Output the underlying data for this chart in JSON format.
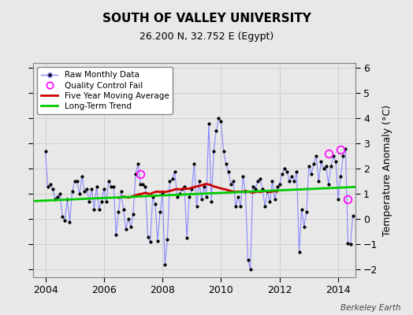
{
  "title": "SOUTH OF VALLEY UNIVERSITY",
  "subtitle": "26.200 N, 32.752 E (Egypt)",
  "ylabel_right": "Temperature Anomaly (°C)",
  "watermark": "Berkeley Earth",
  "xlim": [
    2003.58,
    2014.58
  ],
  "ylim": [
    -2.3,
    6.2
  ],
  "yticks": [
    -2,
    -1,
    0,
    1,
    2,
    3,
    4,
    5,
    6
  ],
  "bg_color": "#e8e8e8",
  "plot_bg_color": "#e8e8e8",
  "raw_line_color": "#8888ff",
  "raw_marker_color": "#000000",
  "moving_avg_color": "#cc0000",
  "trend_color": "#00cc00",
  "qc_fail_color": "#ff00ff",
  "raw_data": [
    [
      2004.0,
      2.7
    ],
    [
      2004.083,
      1.3
    ],
    [
      2004.167,
      1.4
    ],
    [
      2004.25,
      1.2
    ],
    [
      2004.333,
      0.8
    ],
    [
      2004.417,
      0.9
    ],
    [
      2004.5,
      1.0
    ],
    [
      2004.583,
      0.1
    ],
    [
      2004.667,
      -0.05
    ],
    [
      2004.75,
      0.8
    ],
    [
      2004.833,
      -0.1
    ],
    [
      2004.917,
      1.1
    ],
    [
      2005.0,
      1.5
    ],
    [
      2005.083,
      1.5
    ],
    [
      2005.167,
      1.0
    ],
    [
      2005.25,
      1.7
    ],
    [
      2005.333,
      1.1
    ],
    [
      2005.417,
      1.2
    ],
    [
      2005.5,
      0.7
    ],
    [
      2005.583,
      1.2
    ],
    [
      2005.667,
      0.4
    ],
    [
      2005.75,
      1.3
    ],
    [
      2005.833,
      0.4
    ],
    [
      2005.917,
      0.7
    ],
    [
      2006.0,
      1.2
    ],
    [
      2006.083,
      0.7
    ],
    [
      2006.167,
      1.5
    ],
    [
      2006.25,
      1.3
    ],
    [
      2006.333,
      1.3
    ],
    [
      2006.417,
      -0.6
    ],
    [
      2006.5,
      0.3
    ],
    [
      2006.583,
      1.1
    ],
    [
      2006.667,
      0.4
    ],
    [
      2006.75,
      -0.4
    ],
    [
      2006.833,
      0.0
    ],
    [
      2006.917,
      -0.3
    ],
    [
      2007.0,
      0.2
    ],
    [
      2007.083,
      1.8
    ],
    [
      2007.167,
      2.2
    ],
    [
      2007.25,
      1.4
    ],
    [
      2007.333,
      1.4
    ],
    [
      2007.417,
      1.3
    ],
    [
      2007.5,
      -0.7
    ],
    [
      2007.583,
      -0.9
    ],
    [
      2007.667,
      0.9
    ],
    [
      2007.75,
      0.6
    ],
    [
      2007.833,
      -0.85
    ],
    [
      2007.917,
      0.3
    ],
    [
      2008.0,
      1.0
    ],
    [
      2008.083,
      -1.8
    ],
    [
      2008.167,
      -0.8
    ],
    [
      2008.25,
      1.5
    ],
    [
      2008.333,
      1.6
    ],
    [
      2008.417,
      1.9
    ],
    [
      2008.5,
      0.9
    ],
    [
      2008.583,
      1.0
    ],
    [
      2008.667,
      1.2
    ],
    [
      2008.75,
      1.3
    ],
    [
      2008.833,
      -0.75
    ],
    [
      2008.917,
      0.9
    ],
    [
      2009.0,
      1.2
    ],
    [
      2009.083,
      2.2
    ],
    [
      2009.167,
      0.5
    ],
    [
      2009.25,
      1.5
    ],
    [
      2009.333,
      0.8
    ],
    [
      2009.417,
      1.3
    ],
    [
      2009.5,
      0.9
    ],
    [
      2009.583,
      3.8
    ],
    [
      2009.667,
      0.7
    ],
    [
      2009.75,
      2.7
    ],
    [
      2009.833,
      3.5
    ],
    [
      2009.917,
      4.0
    ],
    [
      2010.0,
      3.9
    ],
    [
      2010.083,
      2.7
    ],
    [
      2010.167,
      2.2
    ],
    [
      2010.25,
      1.9
    ],
    [
      2010.333,
      1.4
    ],
    [
      2010.417,
      1.5
    ],
    [
      2010.5,
      0.5
    ],
    [
      2010.583,
      0.9
    ],
    [
      2010.667,
      0.5
    ],
    [
      2010.75,
      1.7
    ],
    [
      2010.833,
      1.1
    ],
    [
      2010.917,
      -1.6
    ],
    [
      2011.0,
      -2.0
    ],
    [
      2011.083,
      1.3
    ],
    [
      2011.167,
      1.2
    ],
    [
      2011.25,
      1.5
    ],
    [
      2011.333,
      1.6
    ],
    [
      2011.417,
      1.2
    ],
    [
      2011.5,
      0.5
    ],
    [
      2011.583,
      1.1
    ],
    [
      2011.667,
      0.7
    ],
    [
      2011.75,
      1.5
    ],
    [
      2011.833,
      0.8
    ],
    [
      2011.917,
      1.3
    ],
    [
      2012.0,
      1.4
    ],
    [
      2012.083,
      1.8
    ],
    [
      2012.167,
      2.0
    ],
    [
      2012.25,
      1.9
    ],
    [
      2012.333,
      1.5
    ],
    [
      2012.417,
      1.7
    ],
    [
      2012.5,
      1.5
    ],
    [
      2012.583,
      1.9
    ],
    [
      2012.667,
      -1.3
    ],
    [
      2012.75,
      0.4
    ],
    [
      2012.833,
      -0.3
    ],
    [
      2012.917,
      0.3
    ],
    [
      2013.0,
      2.1
    ],
    [
      2013.083,
      1.8
    ],
    [
      2013.167,
      2.2
    ],
    [
      2013.25,
      2.5
    ],
    [
      2013.333,
      1.5
    ],
    [
      2013.417,
      2.3
    ],
    [
      2013.5,
      2.0
    ],
    [
      2013.583,
      2.1
    ],
    [
      2013.667,
      1.4
    ],
    [
      2013.75,
      2.1
    ],
    [
      2013.833,
      2.5
    ],
    [
      2013.917,
      2.3
    ],
    [
      2014.0,
      0.8
    ],
    [
      2014.083,
      1.7
    ],
    [
      2014.167,
      2.5
    ],
    [
      2014.25,
      2.8
    ],
    [
      2014.333,
      -0.95
    ],
    [
      2014.417,
      -1.0
    ],
    [
      2014.5,
      0.15
    ]
  ],
  "qc_fails": [
    [
      2007.25,
      1.8
    ],
    [
      2013.667,
      2.6
    ],
    [
      2014.083,
      2.75
    ],
    [
      2014.333,
      0.8
    ]
  ],
  "moving_avg": [
    [
      2006.5,
      0.85
    ],
    [
      2006.583,
      0.88
    ],
    [
      2006.667,
      0.9
    ],
    [
      2006.75,
      0.88
    ],
    [
      2006.833,
      0.86
    ],
    [
      2006.917,
      0.88
    ],
    [
      2007.0,
      0.92
    ],
    [
      2007.083,
      0.95
    ],
    [
      2007.167,
      0.98
    ],
    [
      2007.25,
      1.0
    ],
    [
      2007.333,
      1.02
    ],
    [
      2007.417,
      1.05
    ],
    [
      2007.5,
      1.02
    ],
    [
      2007.583,
      1.0
    ],
    [
      2007.667,
      1.05
    ],
    [
      2007.75,
      1.08
    ],
    [
      2007.833,
      1.1
    ],
    [
      2007.917,
      1.08
    ],
    [
      2008.0,
      1.1
    ],
    [
      2008.083,
      1.08
    ],
    [
      2008.167,
      1.1
    ],
    [
      2008.25,
      1.12
    ],
    [
      2008.333,
      1.15
    ],
    [
      2008.417,
      1.18
    ],
    [
      2008.5,
      1.2
    ],
    [
      2008.583,
      1.18
    ],
    [
      2008.667,
      1.2
    ],
    [
      2008.75,
      1.22
    ],
    [
      2008.833,
      1.2
    ],
    [
      2008.917,
      1.22
    ],
    [
      2009.0,
      1.25
    ],
    [
      2009.083,
      1.28
    ],
    [
      2009.167,
      1.3
    ],
    [
      2009.25,
      1.32
    ],
    [
      2009.333,
      1.35
    ],
    [
      2009.417,
      1.38
    ],
    [
      2009.5,
      1.4
    ],
    [
      2009.583,
      1.38
    ],
    [
      2009.667,
      1.35
    ],
    [
      2009.75,
      1.3
    ],
    [
      2009.833,
      1.28
    ],
    [
      2009.917,
      1.25
    ],
    [
      2010.0,
      1.22
    ],
    [
      2010.083,
      1.2
    ],
    [
      2010.167,
      1.18
    ],
    [
      2010.25,
      1.15
    ],
    [
      2010.333,
      1.12
    ],
    [
      2010.417,
      1.1
    ],
    [
      2010.5,
      1.08
    ],
    [
      2010.583,
      1.1
    ],
    [
      2010.667,
      1.08
    ],
    [
      2010.75,
      1.1
    ],
    [
      2010.833,
      1.12
    ],
    [
      2010.917,
      1.1
    ],
    [
      2011.0,
      1.08
    ],
    [
      2011.083,
      1.05
    ],
    [
      2011.167,
      1.08
    ],
    [
      2011.25,
      1.1
    ],
    [
      2011.333,
      1.08
    ],
    [
      2011.417,
      1.1
    ],
    [
      2011.5,
      1.12
    ],
    [
      2011.583,
      1.1
    ],
    [
      2011.667,
      1.08
    ],
    [
      2011.75,
      1.1
    ],
    [
      2011.833,
      1.12
    ],
    [
      2011.917,
      1.1
    ]
  ],
  "trend_line": [
    [
      2003.58,
      0.72
    ],
    [
      2014.58,
      1.28
    ]
  ],
  "xticks": [
    2004,
    2006,
    2008,
    2010,
    2012,
    2014
  ],
  "grid_color": "#cccccc",
  "title_fontsize": 11,
  "subtitle_fontsize": 9
}
